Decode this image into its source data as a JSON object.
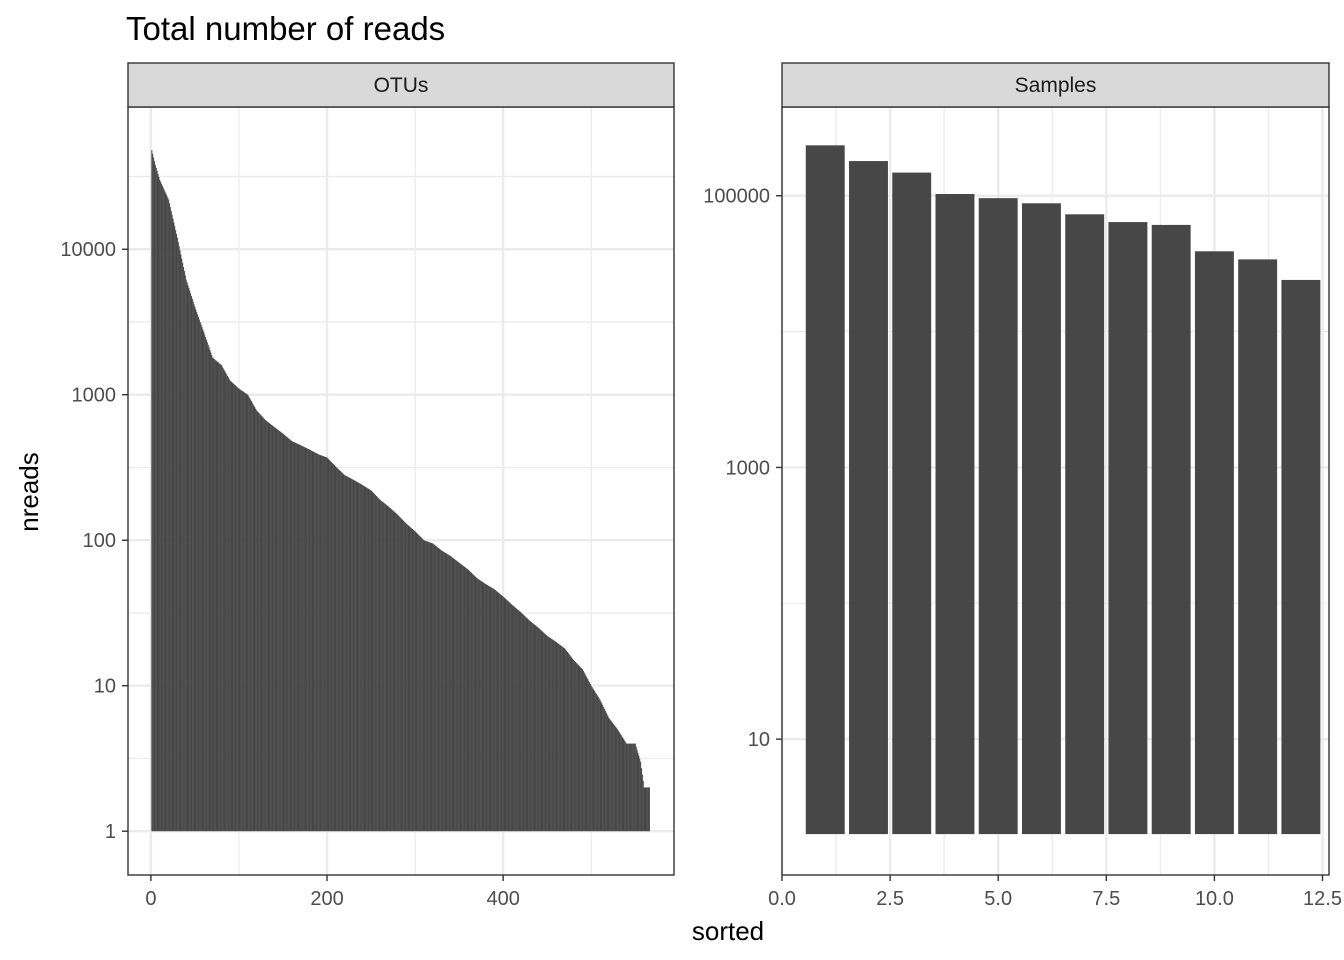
{
  "chart_data": {
    "type": "bar",
    "title": "Total number of reads",
    "xlabel": "sorted",
    "ylabel": "nreads",
    "y_scale": "log10",
    "grid": true,
    "colors": {
      "bar": "#474747",
      "strip_bg": "#d9d9d9",
      "panel_border": "#333333",
      "grid": "#ebebeb"
    },
    "panels": [
      {
        "name": "OTUs",
        "xlim": [
          -26,
          594
        ],
        "ylim": [
          0.5,
          95000
        ],
        "x_ticks": [
          0,
          200,
          400
        ],
        "y_ticks": [
          1,
          10,
          100,
          1000,
          10000
        ],
        "n_bars": 566,
        "curve": {
          "x": [
            1,
            5,
            10,
            20,
            30,
            40,
            50,
            60,
            70,
            80,
            90,
            100,
            110,
            120,
            130,
            140,
            150,
            160,
            170,
            180,
            190,
            200,
            210,
            220,
            230,
            240,
            250,
            260,
            270,
            280,
            290,
            300,
            310,
            320,
            330,
            340,
            350,
            360,
            370,
            380,
            390,
            400,
            410,
            420,
            430,
            440,
            450,
            460,
            470,
            480,
            490,
            500,
            510,
            520,
            530,
            540,
            550,
            556,
            560,
            564,
            566
          ],
          "y": [
            48000,
            38000,
            30000,
            22000,
            12000,
            6200,
            4000,
            2700,
            1800,
            1600,
            1250,
            1100,
            1000,
            780,
            670,
            600,
            540,
            480,
            450,
            420,
            390,
            370,
            320,
            280,
            260,
            240,
            220,
            190,
            170,
            150,
            130,
            115,
            100,
            95,
            85,
            78,
            70,
            63,
            55,
            50,
            46,
            41,
            36,
            32,
            28,
            25,
            22,
            20,
            18,
            15,
            13,
            10,
            8,
            6,
            5,
            4,
            4,
            3,
            2,
            2,
            2
          ]
        }
      },
      {
        "name": "Samples",
        "xlim": [
          0,
          12.65
        ],
        "ylim": [
          1,
          450000
        ],
        "x_ticks": [
          0.0,
          2.5,
          5.0,
          7.5,
          10.0,
          12.5
        ],
        "x_tick_labels": [
          "0.0",
          "2.5",
          "5.0",
          "7.5",
          "10.0",
          "12.5"
        ],
        "y_ticks": [
          10,
          1000,
          100000
        ],
        "x": [
          1,
          2,
          3,
          4,
          5,
          6,
          7,
          8,
          9,
          10,
          11,
          12
        ],
        "values": [
          235000,
          180000,
          148000,
          103000,
          96000,
          88000,
          73000,
          64000,
          61000,
          39000,
          34000,
          24000
        ]
      }
    ]
  }
}
